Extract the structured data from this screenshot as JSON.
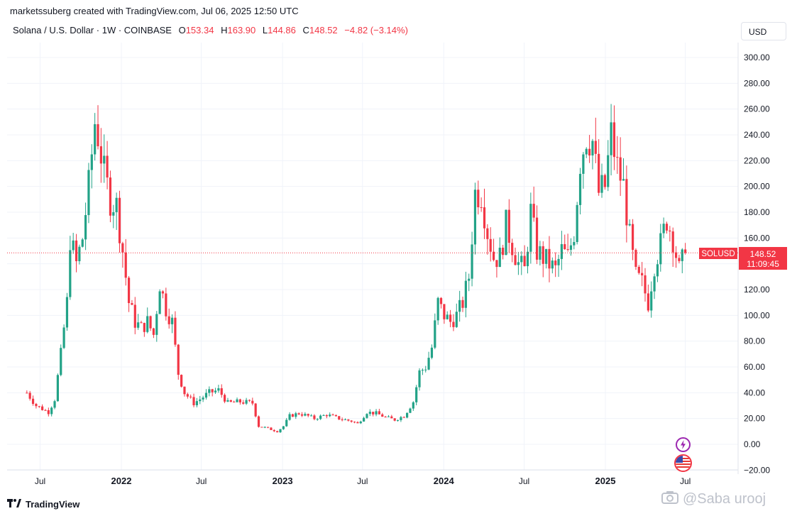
{
  "header": {
    "text": "marketssuberg created with TradingView.com, Jul 06, 2025 12:50 UTC"
  },
  "legend": {
    "symbol": "Solana / U.S. Dollar · 1W · COINBASE",
    "o_label": "O",
    "o_value": "153.34",
    "h_label": "H",
    "h_value": "163.90",
    "l_label": "L",
    "l_value": "144.86",
    "c_label": "C",
    "c_value": "148.52",
    "change": "−4.82 (−3.14%)"
  },
  "currency_button": "USD",
  "price_tag": {
    "symbol": "SOLUSD",
    "price": "148.52",
    "countdown": "11:09:45"
  },
  "footer": {
    "brand": "TradingView"
  },
  "watermark": {
    "text": "@Saba urooj"
  },
  "colors": {
    "up": "#22a287",
    "down": "#f23645",
    "grid": "#f0f3fa",
    "axis_text": "#131722",
    "price_line": "#f23645"
  },
  "icons": [
    "lightning-event-icon",
    "us-flag-event-icon",
    "tradingview-logo-icon",
    "camera-icon"
  ],
  "chart_data": {
    "type": "candlestick",
    "timeframe": "1W",
    "ylim": [
      -20,
      300
    ],
    "ytick_labels": [
      "300.00",
      "280.00",
      "260.00",
      "240.00",
      "220.00",
      "200.00",
      "180.00",
      "160.00",
      "140.00",
      "120.00",
      "100.00",
      "80.00",
      "60.00",
      "40.00",
      "20.00",
      "0.00",
      "−20.00"
    ],
    "yticks": [
      300,
      280,
      260,
      240,
      220,
      200,
      180,
      160,
      140,
      120,
      100,
      80,
      60,
      40,
      20,
      0,
      -20
    ],
    "xtick_labels": [
      "Jul",
      "2022",
      "Jul",
      "2023",
      "Jul",
      "2024",
      "Jul",
      "2025",
      "Jul"
    ],
    "xticks": [
      "2021-07",
      "2022-01",
      "2022-07",
      "2023-01",
      "2023-07",
      "2024-01",
      "2024-07",
      "2025-01",
      "2025-07"
    ],
    "last_price": 148.52,
    "anchors": [
      [
        "2021-06-01",
        40
      ],
      [
        "2021-06-22",
        30
      ],
      [
        "2021-07-20",
        25
      ],
      [
        "2021-08-03",
        35
      ],
      [
        "2021-08-17",
        70
      ],
      [
        "2021-08-31",
        110
      ],
      [
        "2021-09-07",
        160
      ],
      [
        "2021-09-21",
        140
      ],
      [
        "2021-10-05",
        160
      ],
      [
        "2021-10-19",
        200
      ],
      [
        "2021-11-02",
        250
      ],
      [
        "2021-11-09",
        240
      ],
      [
        "2021-11-23",
        210
      ],
      [
        "2021-12-07",
        190
      ],
      [
        "2021-12-21",
        185
      ],
      [
        "2022-01-04",
        150
      ],
      [
        "2022-01-18",
        110
      ],
      [
        "2022-02-01",
        95
      ],
      [
        "2022-02-15",
        90
      ],
      [
        "2022-03-01",
        95
      ],
      [
        "2022-03-15",
        85
      ],
      [
        "2022-03-29",
        125
      ],
      [
        "2022-04-12",
        105
      ],
      [
        "2022-04-26",
        95
      ],
      [
        "2022-05-10",
        55
      ],
      [
        "2022-05-24",
        40
      ],
      [
        "2022-06-14",
        32
      ],
      [
        "2022-06-28",
        35
      ],
      [
        "2022-07-19",
        40
      ],
      [
        "2022-08-09",
        42
      ],
      [
        "2022-08-30",
        32
      ],
      [
        "2022-09-27",
        33
      ],
      [
        "2022-10-25",
        32
      ],
      [
        "2022-11-08",
        14
      ],
      [
        "2022-11-22",
        13
      ],
      [
        "2022-12-20",
        10
      ],
      [
        "2023-01-03",
        14
      ],
      [
        "2023-01-17",
        22
      ],
      [
        "2023-02-07",
        24
      ],
      [
        "2023-02-28",
        22
      ],
      [
        "2023-03-14",
        20
      ],
      [
        "2023-04-11",
        23
      ],
      [
        "2023-05-09",
        20
      ],
      [
        "2023-06-06",
        18
      ],
      [
        "2023-06-20",
        16
      ],
      [
        "2023-07-11",
        25
      ],
      [
        "2023-08-01",
        24
      ],
      [
        "2023-08-22",
        21
      ],
      [
        "2023-09-12",
        19
      ],
      [
        "2023-10-03",
        22
      ],
      [
        "2023-10-24",
        33
      ],
      [
        "2023-11-07",
        56
      ],
      [
        "2023-11-21",
        60
      ],
      [
        "2023-12-05",
        75
      ],
      [
        "2023-12-19",
        110
      ],
      [
        "2024-01-02",
        100
      ],
      [
        "2024-01-16",
        95
      ],
      [
        "2024-01-30",
        100
      ],
      [
        "2024-02-13",
        110
      ],
      [
        "2024-02-27",
        130
      ],
      [
        "2024-03-12",
        195
      ],
      [
        "2024-03-26",
        195
      ],
      [
        "2024-04-09",
        165
      ],
      [
        "2024-04-23",
        145
      ],
      [
        "2024-05-07",
        145
      ],
      [
        "2024-05-21",
        170
      ],
      [
        "2024-06-04",
        155
      ],
      [
        "2024-06-18",
        140
      ],
      [
        "2024-07-02",
        135
      ],
      [
        "2024-07-16",
        180
      ],
      [
        "2024-07-30",
        150
      ],
      [
        "2024-08-13",
        145
      ],
      [
        "2024-08-27",
        140
      ],
      [
        "2024-09-10",
        135
      ],
      [
        "2024-09-24",
        150
      ],
      [
        "2024-10-08",
        145
      ],
      [
        "2024-10-22",
        165
      ],
      [
        "2024-11-05",
        220
      ],
      [
        "2024-11-19",
        240
      ],
      [
        "2024-12-03",
        235
      ],
      [
        "2024-12-17",
        195
      ],
      [
        "2024-12-31",
        200
      ],
      [
        "2025-01-14",
        240
      ],
      [
        "2025-01-28",
        215
      ],
      [
        "2025-02-11",
        200
      ],
      [
        "2025-02-25",
        160
      ],
      [
        "2025-03-11",
        130
      ],
      [
        "2025-03-25",
        125
      ],
      [
        "2025-04-08",
        110
      ],
      [
        "2025-04-22",
        140
      ],
      [
        "2025-05-06",
        155
      ],
      [
        "2025-05-20",
        175
      ],
      [
        "2025-06-03",
        160
      ],
      [
        "2025-06-17",
        135
      ],
      [
        "2025-07-01",
        148.52
      ]
    ]
  }
}
